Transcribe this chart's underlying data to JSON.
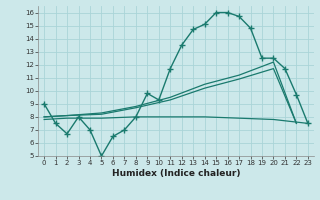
{
  "xlabel": "Humidex (Indice chaleur)",
  "background_color": "#cce8ea",
  "grid_color": "#aad4d8",
  "line_color": "#1a7a6e",
  "xlim": [
    -0.5,
    23.5
  ],
  "ylim": [
    5,
    16.5
  ],
  "xticks": [
    0,
    1,
    2,
    3,
    4,
    5,
    6,
    7,
    8,
    9,
    10,
    11,
    12,
    13,
    14,
    15,
    16,
    17,
    18,
    19,
    20,
    21,
    22,
    23
  ],
  "yticks": [
    5,
    6,
    7,
    8,
    9,
    10,
    11,
    12,
    13,
    14,
    15,
    16
  ],
  "line1_x": [
    0,
    1,
    2,
    3,
    4,
    5,
    6,
    7,
    8,
    9,
    10,
    11,
    12,
    13,
    14,
    15,
    16,
    17,
    18,
    19,
    20,
    21,
    22,
    23
  ],
  "line1_y": [
    9.0,
    7.5,
    6.7,
    8.0,
    7.0,
    5.0,
    6.5,
    7.0,
    8.0,
    9.8,
    9.3,
    11.7,
    13.5,
    14.7,
    15.1,
    16.0,
    16.0,
    15.7,
    14.8,
    12.5,
    12.5,
    11.7,
    9.7,
    7.5
  ],
  "line2_x": [
    0,
    2,
    5,
    8,
    11,
    14,
    17,
    20,
    22
  ],
  "line2_y": [
    8.0,
    8.1,
    8.3,
    8.8,
    9.5,
    10.5,
    11.2,
    12.2,
    7.5
  ],
  "line3_x": [
    0,
    2,
    5,
    8,
    11,
    14,
    17,
    20,
    22
  ],
  "line3_y": [
    8.0,
    8.1,
    8.2,
    8.7,
    9.3,
    10.2,
    10.9,
    11.7,
    7.5
  ],
  "line4_x": [
    0,
    2,
    5,
    8,
    11,
    14,
    17,
    20,
    22,
    23
  ],
  "line4_y": [
    7.8,
    7.9,
    7.9,
    8.0,
    8.0,
    8.0,
    7.9,
    7.8,
    7.6,
    7.5
  ]
}
